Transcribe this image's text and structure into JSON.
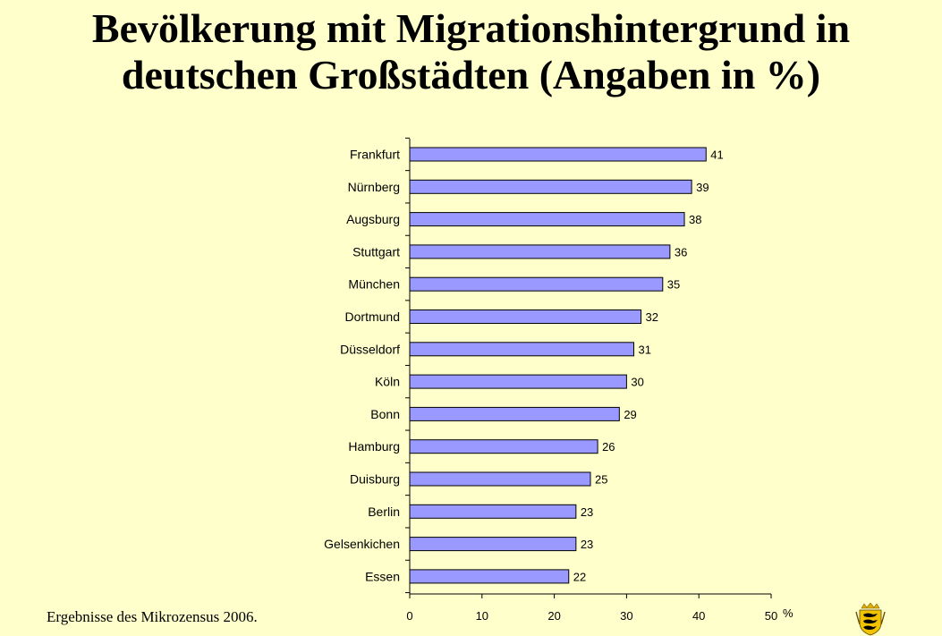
{
  "title": {
    "line1": "Bevölkerung mit Migrationshintergrund in",
    "line2": "deutschen Großstädten (Angaben in %)"
  },
  "source_note": "Ergebnisse des Mikrozensus 2006.",
  "logo": "baden-wuerttemberg-coat-of-arms-icon",
  "colors": {
    "background": "#ffffcc",
    "bar_fill": "#9999ff",
    "bar_stroke": "#000000"
  },
  "chart_data": {
    "type": "bar",
    "orientation": "horizontal",
    "categories": [
      "Frankfurt",
      "Nürnberg",
      "Augsburg",
      "Stuttgart",
      "München",
      "Dortmund",
      "Düsseldorf",
      "Köln",
      "Bonn",
      "Hamburg",
      "Duisburg",
      "Berlin",
      "Gelsenkichen",
      "Essen"
    ],
    "values": [
      41,
      39,
      38,
      36,
      35,
      32,
      31,
      30,
      29,
      26,
      25,
      23,
      23,
      22
    ],
    "xlim": [
      0,
      50
    ],
    "xticks": [
      0,
      10,
      20,
      30,
      40,
      50
    ],
    "xlabel": "%",
    "data_labels": true,
    "grid": false,
    "legend": "none"
  }
}
